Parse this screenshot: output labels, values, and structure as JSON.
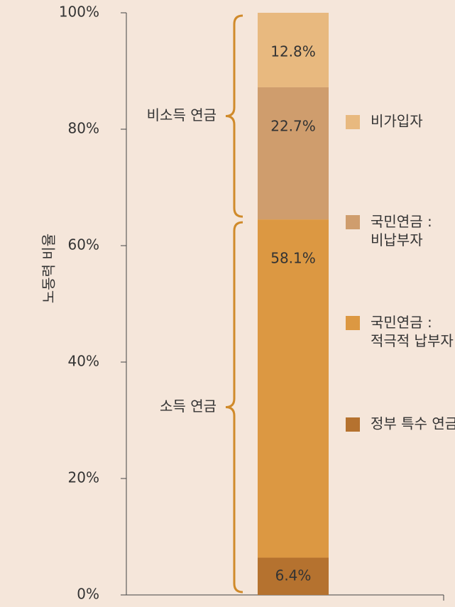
{
  "chart_data": {
    "type": "stacked_bar",
    "y_label": "노동력 비율",
    "categories": [
      null
    ],
    "series": [
      {
        "name": "정부 특수 연금",
        "color": "#b5722f",
        "values": [
          6.4
        ],
        "value_labels": [
          "6.4%"
        ]
      },
      {
        "name": "국민연금 : 적극적 납부자",
        "color": "#dc9842",
        "values": [
          58.1
        ],
        "value_labels": [
          "58.1%"
        ]
      },
      {
        "name": "국민연금 : 비납부자",
        "color": "#cf9d6d",
        "values": [
          22.7
        ],
        "value_labels": [
          "22.7%"
        ]
      },
      {
        "name": "비가입자",
        "color": "#e8b97f",
        "values": [
          12.8
        ],
        "value_labels": [
          "12.8%"
        ]
      }
    ],
    "annotations": [
      "소득 연금",
      "비소득 연금"
    ],
    "ylim": [
      0,
      100
    ],
    "yticks": [
      {
        "value": 0,
        "label": "0%"
      },
      {
        "value": 20,
        "label": "20%"
      },
      {
        "value": 40,
        "label": "40%"
      },
      {
        "value": 60,
        "label": "60%"
      },
      {
        "value": 80,
        "label": "80%"
      },
      {
        "value": 100,
        "label": "100%"
      }
    ],
    "brace_color": "#d08a2a"
  }
}
